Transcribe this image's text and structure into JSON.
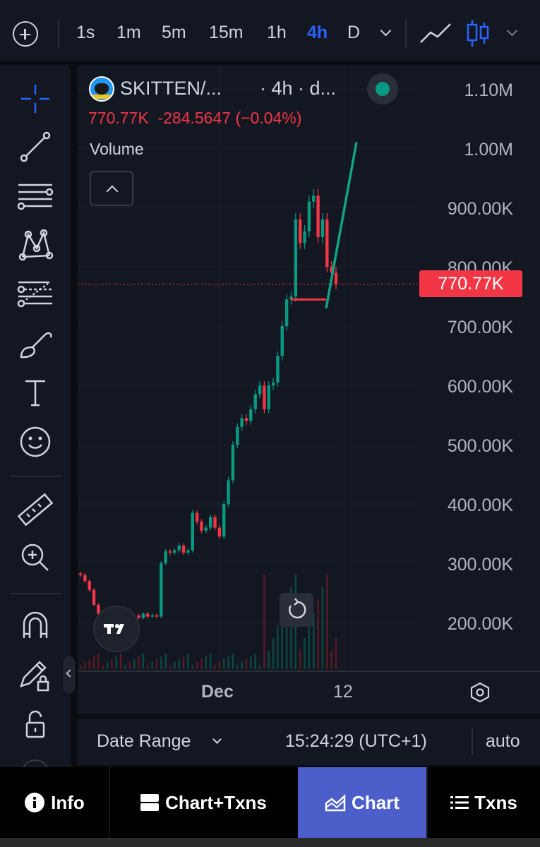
{
  "toolbar": {
    "add_icon": "plus-circle-icon",
    "timeframes": [
      "1s",
      "1m",
      "5m",
      "15m",
      "1h",
      "4h",
      "D"
    ],
    "active_timeframe": "4h",
    "chart_style_icons": [
      "line-chart-icon",
      "candles-icon"
    ]
  },
  "left_tools": [
    "crosshair-icon",
    "trend-line-icon",
    "horizontal-lines-icon",
    "pattern-icon",
    "fib-retracement-icon",
    "brush-icon",
    "text-icon",
    "emoji-icon",
    "ruler-icon",
    "zoom-in-icon",
    "magnet-icon",
    "lock-drawing-icon",
    "lock-icon"
  ],
  "legend": {
    "symbol": "SKITTEN/...",
    "interval": "· 4h · d...",
    "ohlc_line": "770.77K  -284.5647 (−0.04%)",
    "volume_label": "Volume"
  },
  "price_axis": {
    "labels": [
      "1.10M",
      "1.00M",
      "900.00K",
      "800.00K",
      "700.00K",
      "600.00K",
      "500.00K",
      "400.00K",
      "300.00K",
      "200.00K"
    ],
    "current_price": "770.77K"
  },
  "time_axis": {
    "labels": [
      "Dec",
      "12"
    ]
  },
  "info_bar": {
    "date_range": "Date Range",
    "clock": "15:24:29 (UTC+1)",
    "scale_mode": "auto"
  },
  "bottom_nav": {
    "items": [
      "Info",
      "Chart+Txns",
      "Chart",
      "Txns"
    ],
    "active": "Chart"
  },
  "colors": {
    "up": "#089981",
    "down": "#f23645",
    "accent": "#2962ff",
    "nav_active": "#4c5ec9"
  },
  "chart_data": {
    "type": "candlestick",
    "symbol": "SKITTEN",
    "interval": "4h",
    "y_unit": "market cap",
    "ylim": [
      150000,
      1150000
    ],
    "closes": [
      280000,
      270000,
      255000,
      230000,
      215000,
      210000,
      212000,
      205000,
      208000,
      205000,
      210000,
      206000,
      212000,
      208000,
      215000,
      210000,
      212000,
      210000,
      300000,
      320000,
      318000,
      322000,
      330000,
      318000,
      322000,
      385000,
      370000,
      355000,
      360000,
      378000,
      360000,
      345000,
      400000,
      440000,
      500000,
      530000,
      545000,
      540000,
      560000,
      585000,
      600000,
      560000,
      600000,
      605000,
      650000,
      700000,
      745000,
      750000,
      880000,
      840000,
      860000,
      910000,
      920000,
      850000,
      880000,
      800000,
      790000,
      770770
    ],
    "current_price": 770770,
    "current_change": -284.5647,
    "current_change_pct": -0.04,
    "annotations": [
      {
        "type": "horizontal_segment",
        "color": "red",
        "y": 745000
      },
      {
        "type": "trend_line",
        "color": "green",
        "y_start": 730000,
        "y_end": 1010000
      }
    ]
  }
}
